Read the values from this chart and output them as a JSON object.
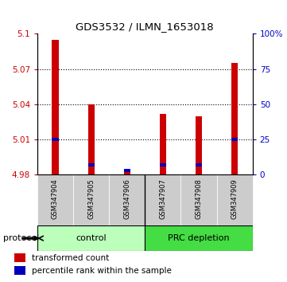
{
  "title": "GDS3532 / ILMN_1653018",
  "samples": [
    "GSM347904",
    "GSM347905",
    "GSM347906",
    "GSM347907",
    "GSM347908",
    "GSM347909"
  ],
  "red_values": [
    5.095,
    5.04,
    4.985,
    5.032,
    5.03,
    5.075
  ],
  "blue_values_pct": [
    25,
    7,
    3,
    7,
    7,
    25
  ],
  "ylim": [
    4.98,
    5.1
  ],
  "y_ticks_left": [
    4.98,
    5.01,
    5.04,
    5.07,
    5.1
  ],
  "y_ticks_right": [
    0,
    25,
    50,
    75,
    100
  ],
  "groups": [
    {
      "label": "control",
      "samples_idx": [
        0,
        1,
        2
      ],
      "color": "#bbffbb"
    },
    {
      "label": "PRC depletion",
      "samples_idx": [
        3,
        4,
        5
      ],
      "color": "#44dd44"
    }
  ],
  "bar_bottom": 4.98,
  "left_tick_color": "#cc0000",
  "right_tick_color": "#0000cc",
  "red_bar_color": "#cc0000",
  "blue_bar_color": "#0000bb",
  "legend_red_label": "transformed count",
  "legend_blue_label": "percentile rank within the sample",
  "protocol_label": "protocol",
  "background_color": "#ffffff",
  "plot_bg": "#ffffff",
  "bar_width": 0.18,
  "grid_color": "#000000",
  "grid_linestyle": ":",
  "grid_linewidth": 0.8
}
